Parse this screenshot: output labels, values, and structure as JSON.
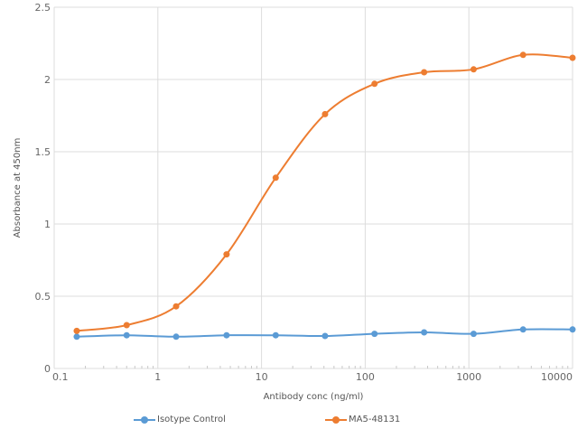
{
  "chart_data": {
    "type": "line",
    "title": "",
    "xlabel": "Antibody conc (ng/ml)",
    "ylabel": "Absorbance at 450nm",
    "x_scale": "log",
    "xlim": [
      0.1,
      10000
    ],
    "ylim": [
      0,
      2.5
    ],
    "x_ticks": [
      "0.1",
      "1",
      "10",
      "100",
      "1000",
      "10000"
    ],
    "y_ticks": [
      "0",
      "0.5",
      "1",
      "1.5",
      "2",
      "2.5"
    ],
    "grid": true,
    "legend_position": "bottom",
    "x": [
      0.165,
      0.5,
      1.5,
      4.6,
      13.7,
      41,
      123,
      370,
      1111,
      3333,
      10000
    ],
    "series": [
      {
        "name": "Isotype Control",
        "color": "#5b9bd5",
        "values": [
          0.22,
          0.23,
          0.22,
          0.23,
          0.23,
          0.225,
          0.24,
          0.25,
          0.24,
          0.27,
          0.27
        ]
      },
      {
        "name": "MA5-48131",
        "color": "#ed7d31",
        "values": [
          0.26,
          0.3,
          0.43,
          0.79,
          1.32,
          1.76,
          1.97,
          2.05,
          2.07,
          2.17,
          2.15
        ]
      }
    ]
  },
  "legend": {
    "items": [
      {
        "label": "Isotype Control",
        "color": "#5b9bd5"
      },
      {
        "label": "MA5-48131",
        "color": "#ed7d31"
      }
    ]
  }
}
